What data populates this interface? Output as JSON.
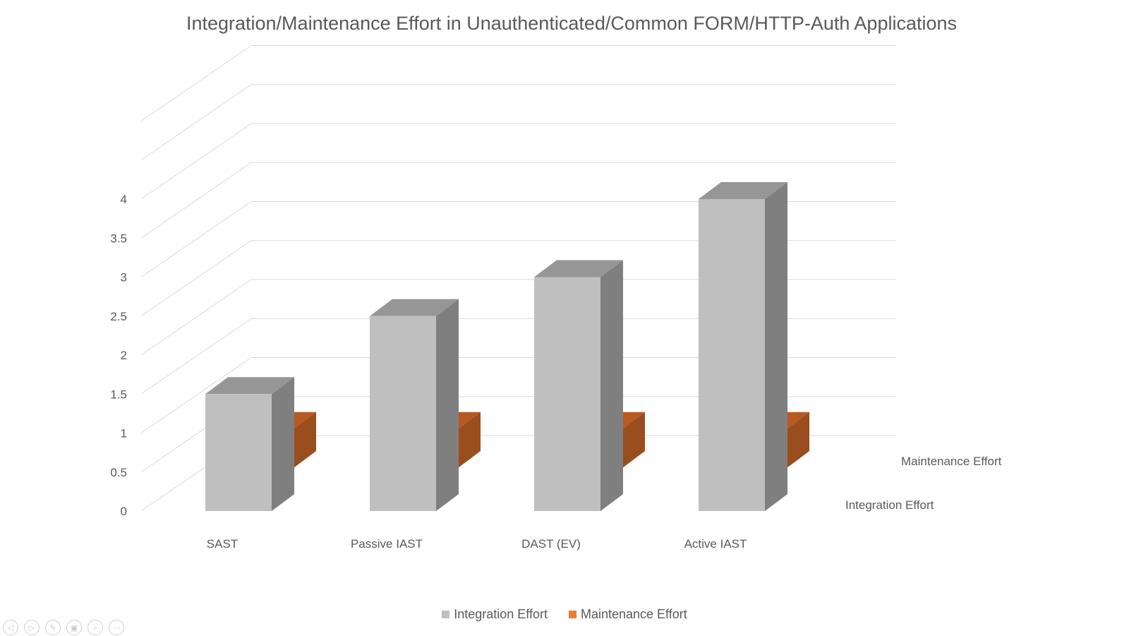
{
  "chart_data": {
    "type": "bar",
    "title": "Integration/Maintenance Effort in Unauthenticated/Common FORM/HTTP-Auth Applications",
    "categories": [
      "SAST",
      "Passive IAST",
      "DAST (EV)",
      "Active IAST"
    ],
    "series": [
      {
        "name": "Integration Effort",
        "values": [
          1.5,
          2.5,
          3,
          4
        ],
        "color": "#bfbfbf",
        "side_color": "#7f7f7f",
        "top_color": "#969696"
      },
      {
        "name": "Maintenance Effort",
        "values": [
          0.5,
          0.5,
          0.5,
          0.5
        ],
        "color": "#ed7d31",
        "side_color": "#9b4e1d",
        "top_color": "#b8591f"
      }
    ],
    "ylim": [
      0,
      5
    ],
    "yticks": [
      "0",
      "0.5",
      "1",
      "1.5",
      "2",
      "2.5",
      "3",
      "3.5",
      "4"
    ],
    "depth_labels": [
      "Maintenance Effort",
      "Integration Effort"
    ],
    "grid": true,
    "legend_position": "bottom",
    "projection": "3d-column"
  },
  "nav": {
    "icons": [
      "back-icon",
      "forward-icon",
      "pen-icon",
      "slides-icon",
      "zoom-icon",
      "more-icon"
    ],
    "glyphs": [
      "◁",
      "▷",
      "✎",
      "▣",
      "⌕",
      "⋯"
    ]
  }
}
